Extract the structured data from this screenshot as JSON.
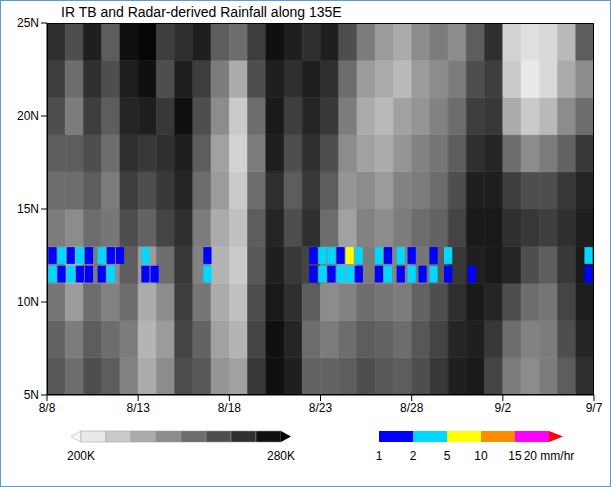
{
  "chart_data": {
    "type": "heatmap",
    "title": "IR TB and Radar-derived Rainfall along 135E",
    "xlim": [
      0,
      30
    ],
    "xticks": [
      {
        "value": 0,
        "label": "8/8"
      },
      {
        "value": 5,
        "label": "8/13"
      },
      {
        "value": 10,
        "label": "8/18"
      },
      {
        "value": 15,
        "label": "8/23"
      },
      {
        "value": 20,
        "label": "8/28"
      },
      {
        "value": 25,
        "label": "9/2"
      },
      {
        "value": 30,
        "label": "9/7"
      }
    ],
    "ylim": [
      5,
      25
    ],
    "yticks": [
      {
        "value": 5,
        "label": "5N"
      },
      {
        "value": 10,
        "label": "10N"
      },
      {
        "value": 15,
        "label": "15N"
      },
      {
        "value": 20,
        "label": "20N"
      },
      {
        "value": 25,
        "label": "25N"
      }
    ],
    "tb_x_edges": [
      0,
      1,
      2,
      3,
      4,
      5,
      6,
      7,
      8,
      9,
      10,
      11,
      12,
      13,
      14,
      15,
      16,
      17,
      18,
      19,
      20,
      21,
      22,
      23,
      24,
      25,
      26,
      27,
      28,
      29,
      30
    ],
    "tb_lat_edges": [
      5,
      7,
      9,
      11,
      13,
      15,
      17,
      19,
      21,
      23,
      25
    ],
    "tb_cells": [
      [
        252,
        245,
        255,
        250,
        238,
        225,
        235,
        255,
        252,
        232,
        228,
        262,
        275,
        270,
        248,
        248,
        250,
        255,
        252,
        250,
        255,
        262,
        270,
        272,
        258,
        240,
        235,
        240,
        250,
        265
      ],
      [
        248,
        240,
        250,
        245,
        240,
        222,
        230,
        258,
        248,
        228,
        222,
        258,
        275,
        268,
        245,
        240,
        245,
        250,
        248,
        245,
        252,
        258,
        268,
        270,
        262,
        245,
        238,
        240,
        255,
        268
      ],
      [
        242,
        230,
        245,
        238,
        245,
        225,
        235,
        260,
        242,
        225,
        218,
        255,
        272,
        265,
        250,
        235,
        238,
        245,
        242,
        240,
        248,
        255,
        265,
        272,
        268,
        255,
        245,
        242,
        258,
        270
      ],
      [
        238,
        225,
        240,
        235,
        250,
        230,
        245,
        262,
        238,
        222,
        215,
        252,
        270,
        262,
        258,
        238,
        230,
        240,
        238,
        238,
        242,
        250,
        262,
        270,
        272,
        268,
        255,
        250,
        262,
        272
      ],
      [
        240,
        235,
        245,
        242,
        255,
        248,
        258,
        265,
        240,
        225,
        218,
        250,
        268,
        255,
        265,
        245,
        228,
        238,
        235,
        240,
        245,
        248,
        258,
        272,
        272,
        265,
        262,
        260,
        265,
        270
      ],
      [
        245,
        245,
        250,
        240,
        260,
        255,
        262,
        268,
        245,
        230,
        215,
        245,
        265,
        250,
        262,
        250,
        232,
        235,
        230,
        238,
        240,
        245,
        255,
        270,
        270,
        260,
        255,
        255,
        262,
        268
      ],
      [
        250,
        250,
        255,
        245,
        265,
        262,
        265,
        270,
        250,
        228,
        212,
        240,
        270,
        255,
        265,
        255,
        235,
        228,
        225,
        232,
        238,
        242,
        250,
        265,
        268,
        245,
        235,
        240,
        248,
        262
      ],
      [
        255,
        240,
        260,
        250,
        268,
        270,
        262,
        275,
        255,
        235,
        215,
        245,
        272,
        260,
        268,
        262,
        240,
        225,
        220,
        228,
        232,
        238,
        245,
        260,
        262,
        225,
        215,
        220,
        235,
        245
      ],
      [
        260,
        245,
        265,
        255,
        270,
        275,
        255,
        270,
        260,
        240,
        225,
        255,
        270,
        265,
        270,
        265,
        245,
        230,
        225,
        220,
        230,
        235,
        240,
        255,
        260,
        215,
        205,
        210,
        225,
        235
      ],
      [
        265,
        255,
        270,
        250,
        275,
        278,
        260,
        265,
        270,
        250,
        245,
        260,
        275,
        270,
        265,
        270,
        255,
        240,
        230,
        225,
        235,
        240,
        235,
        250,
        265,
        212,
        208,
        210,
        220,
        250
      ]
    ],
    "tb_colorbar": {
      "range": [
        200,
        280
      ],
      "ticks": [
        {
          "value": 200,
          "label": "200K"
        },
        {
          "value": 280,
          "label": "280K"
        }
      ]
    },
    "rain": {
      "x": [
        0.3,
        0.3,
        0.8,
        0.8,
        1.3,
        1.3,
        1.8,
        1.8,
        2.3,
        2.3,
        3.0,
        3.0,
        3.5,
        3.5,
        4.0,
        5.4,
        5.4,
        5.9,
        8.8,
        8.8,
        14.6,
        14.6,
        15.1,
        15.1,
        15.6,
        15.6,
        16.1,
        16.1,
        16.6,
        16.6,
        17.1,
        17.1,
        18.2,
        18.2,
        18.7,
        18.7,
        19.4,
        19.4,
        20.0,
        20.0,
        20.6,
        21.2,
        21.2,
        22.0,
        22.0,
        23.3,
        29.7,
        29.7
      ],
      "lat": [
        11.5,
        12.5,
        11.5,
        12.5,
        11.5,
        12.5,
        11.5,
        12.5,
        11.5,
        12.5,
        11.5,
        12.5,
        11.5,
        12.5,
        12.5,
        11.5,
        12.5,
        11.5,
        11.5,
        12.5,
        11.5,
        12.5,
        11.5,
        12.5,
        11.5,
        12.5,
        11.5,
        12.5,
        11.5,
        12.5,
        11.5,
        12.5,
        11.5,
        12.5,
        11.5,
        12.5,
        11.5,
        12.5,
        11.5,
        12.5,
        11.5,
        11.5,
        12.5,
        11.5,
        12.5,
        11.5,
        11.5,
        12.5
      ],
      "values": [
        2,
        1,
        1,
        3,
        2,
        1,
        1,
        2,
        1,
        1,
        1,
        2,
        3,
        1,
        1,
        1,
        2,
        1,
        2,
        1,
        1,
        1,
        2,
        3,
        1,
        2,
        3,
        1,
        2,
        6,
        1,
        2,
        1,
        2,
        2,
        1,
        1,
        3,
        2,
        1,
        1,
        2,
        1,
        1,
        2,
        1,
        1,
        2
      ]
    },
    "rain_colorbar": {
      "ticks": [
        1,
        2,
        5,
        10,
        15,
        {
          "value": 20,
          "label": "20 mm/hr"
        }
      ],
      "colors": [
        "#0000ff",
        "#00d8ff",
        "#ffff00",
        "#ff8c00",
        "#ff00ff",
        "#ff0000"
      ]
    }
  }
}
